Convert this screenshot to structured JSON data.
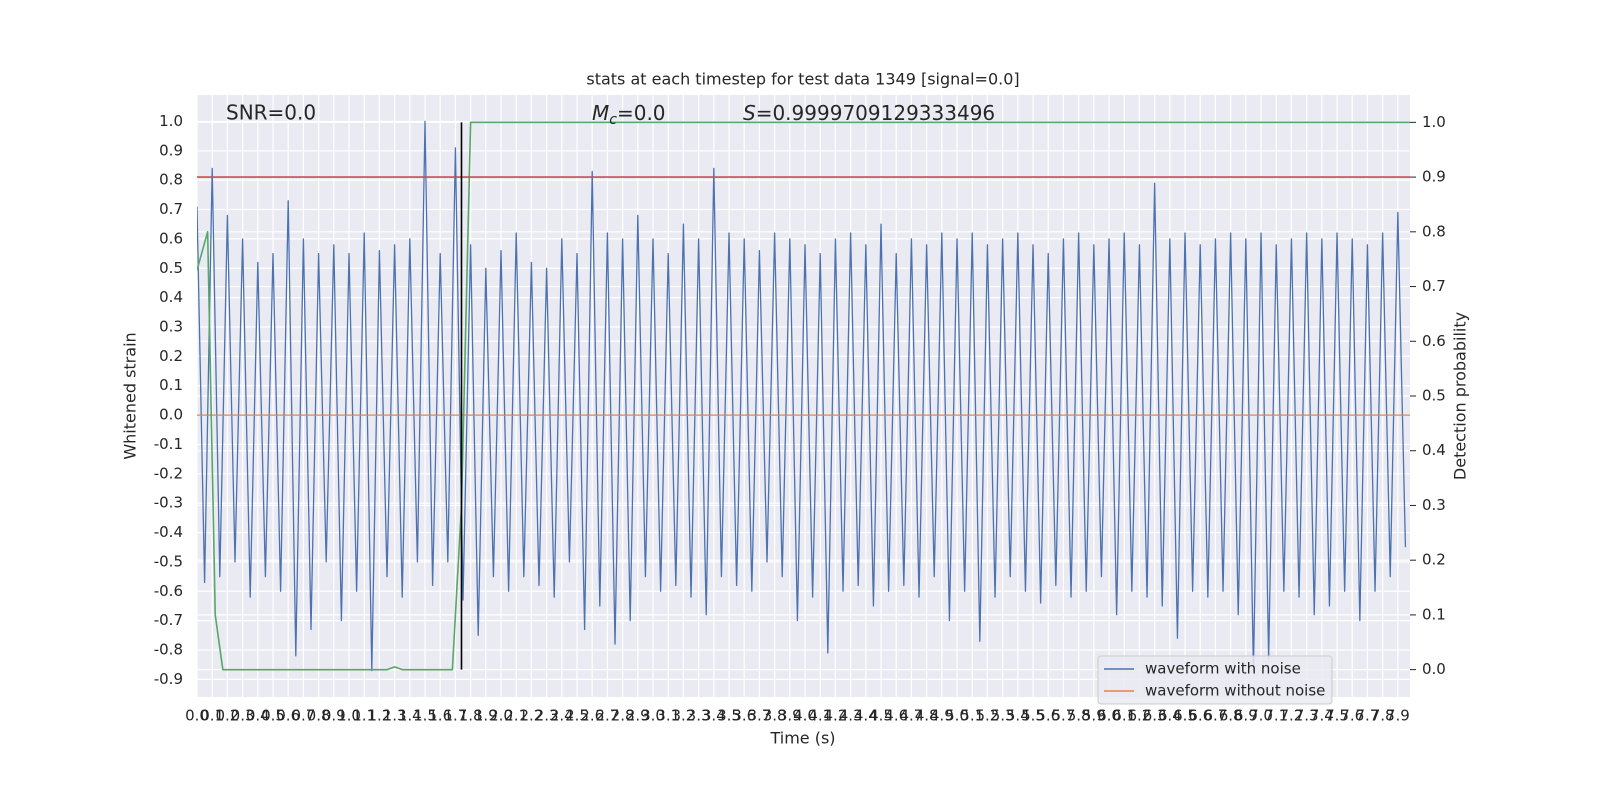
{
  "chart_data": {
    "type": "line",
    "title": "stats at each timestep for test data 1349 [signal=0.0]",
    "xlabel": "Time (s)",
    "ylabel": "Whitened strain",
    "y2label": "Detection probability",
    "annotations": {
      "snr": "SNR=0.0",
      "mc": {
        "symbol": "M",
        "subscript": "c",
        "text": "=0.0"
      },
      "s": {
        "symbol": "S",
        "text": "=0.9999709129333496"
      }
    },
    "xlim": [
      0,
      7.98
    ],
    "ylim": [
      -0.96,
      1.09
    ],
    "y2lim": [
      -0.05,
      1.05
    ],
    "grid": true,
    "legend": "lower right",
    "xticks": [
      {
        "value": 0,
        "label": "0.0"
      },
      0.1,
      0.2,
      0.3,
      0.4,
      0.5,
      0.6,
      0.7,
      0.8,
      0.9,
      {
        "value": 1,
        "label": "1.0"
      },
      1.1,
      1.2,
      1.3,
      1.4,
      1.5,
      1.6,
      1.7,
      1.8,
      1.9,
      {
        "value": 2,
        "label": "2.0"
      },
      2.1,
      2.2,
      2.3,
      2.4,
      2.5,
      2.6,
      2.7,
      2.8,
      2.9,
      {
        "value": 3,
        "label": "3.0"
      },
      3.1,
      3.2,
      3.3,
      3.4,
      3.5,
      3.6,
      3.7,
      3.8,
      3.9,
      {
        "value": 4,
        "label": "4.0"
      },
      4.1,
      4.2,
      4.3,
      4.4,
      4.5,
      4.6,
      4.7,
      4.8,
      4.9,
      {
        "value": 5,
        "label": "5.0"
      },
      5.1,
      5.2,
      5.3,
      5.4,
      5.5,
      5.6,
      5.7,
      5.8,
      5.9,
      {
        "value": 6,
        "label": "6.0"
      },
      6.1,
      6.2,
      6.3,
      6.4,
      6.5,
      6.6,
      6.7,
      6.8,
      6.9,
      {
        "value": 7,
        "label": "7.0"
      },
      7.1,
      7.2,
      7.3,
      7.4,
      7.5,
      7.6,
      7.7,
      7.8,
      7.9
    ],
    "yticks": [
      {
        "value": 1,
        "label": "1.0"
      },
      0.9,
      0.8,
      0.7,
      0.6,
      0.5,
      0.4,
      0.3,
      0.2,
      0.1,
      {
        "value": 0,
        "label": "0.0"
      },
      -0.1,
      -0.2,
      -0.3,
      -0.4,
      -0.5,
      -0.6,
      -0.7,
      -0.8,
      -0.9
    ],
    "y2ticks": [
      {
        "value": 1,
        "label": "1.0"
      },
      0.9,
      0.8,
      0.7,
      0.6,
      0.5,
      0.4,
      0.3,
      0.2,
      0.1,
      {
        "value": 0,
        "label": "0.0"
      }
    ],
    "series": [
      {
        "name": "waveform with noise",
        "color": "#4c72b0",
        "x": [
          0,
          0.05,
          0.1,
          0.15,
          0.2,
          0.25,
          0.3,
          0.35,
          0.4,
          0.45,
          0.5,
          0.55,
          0.6,
          0.65,
          0.7,
          0.75,
          0.8,
          0.85,
          0.9,
          0.95,
          1,
          1.05,
          1.1,
          1.15,
          1.2,
          1.25,
          1.3,
          1.35,
          1.4,
          1.45,
          1.5,
          1.55,
          1.6,
          1.65,
          1.7,
          1.75,
          1.8,
          1.85,
          1.9,
          1.95,
          2,
          2.05,
          2.1,
          2.15,
          2.2,
          2.25,
          2.3,
          2.35,
          2.4,
          2.45,
          2.5,
          2.55,
          2.6,
          2.65,
          2.7,
          2.75,
          2.8,
          2.85,
          2.9,
          2.95,
          3,
          3.05,
          3.1,
          3.15,
          3.2,
          3.25,
          3.3,
          3.35,
          3.4,
          3.45,
          3.5,
          3.55,
          3.6,
          3.65,
          3.7,
          3.75,
          3.8,
          3.85,
          3.9,
          3.95,
          4,
          4.05,
          4.1,
          4.15,
          4.2,
          4.25,
          4.3,
          4.35,
          4.4,
          4.45,
          4.5,
          4.55,
          4.6,
          4.65,
          4.7,
          4.75,
          4.8,
          4.85,
          4.9,
          4.95,
          5,
          5.05,
          5.1,
          5.15,
          5.2,
          5.25,
          5.3,
          5.35,
          5.4,
          5.45,
          5.5,
          5.55,
          5.6,
          5.65,
          5.7,
          5.75,
          5.8,
          5.85,
          5.9,
          5.95,
          6,
          6.05,
          6.1,
          6.15,
          6.2,
          6.25,
          6.3,
          6.35,
          6.4,
          6.45,
          6.5,
          6.55,
          6.6,
          6.65,
          6.7,
          6.75,
          6.8,
          6.85,
          6.9,
          6.95,
          7,
          7.05,
          7.1,
          7.15,
          7.2,
          7.25,
          7.3,
          7.35,
          7.4,
          7.45,
          7.5,
          7.55,
          7.6,
          7.65,
          7.7,
          7.75,
          7.8,
          7.85,
          7.9,
          7.95
        ],
        "values": [
          0.71,
          -0.57,
          0.84,
          -0.55,
          0.68,
          -0.5,
          0.6,
          -0.62,
          0.52,
          -0.55,
          0.55,
          -0.6,
          0.73,
          -0.82,
          0.6,
          -0.73,
          0.55,
          -0.5,
          0.58,
          -0.7,
          0.55,
          -0.6,
          0.62,
          -0.87,
          0.56,
          -0.55,
          0.58,
          -0.62,
          0.6,
          -0.5,
          1.0,
          -0.58,
          0.55,
          -0.5,
          0.91,
          -0.63,
          0.58,
          -0.75,
          0.5,
          -0.55,
          0.56,
          -0.6,
          0.62,
          -0.55,
          0.52,
          -0.58,
          0.5,
          -0.62,
          0.6,
          -0.5,
          0.55,
          -0.73,
          0.83,
          -0.65,
          0.62,
          -0.78,
          0.6,
          -0.7,
          0.68,
          -0.55,
          0.6,
          -0.6,
          0.55,
          -0.58,
          0.65,
          -0.62,
          0.6,
          -0.68,
          0.84,
          -0.55,
          0.62,
          -0.58,
          0.6,
          -0.6,
          0.56,
          -0.5,
          0.62,
          -0.55,
          0.6,
          -0.7,
          0.58,
          -0.62,
          0.55,
          -0.81,
          0.6,
          -0.6,
          0.62,
          -0.58,
          0.58,
          -0.65,
          0.65,
          -0.6,
          0.55,
          -0.58,
          0.6,
          -0.62,
          0.58,
          -0.55,
          0.62,
          -0.7,
          0.6,
          -0.6,
          0.62,
          -0.77,
          0.58,
          -0.62,
          0.6,
          -0.55,
          0.62,
          -0.6,
          0.58,
          -0.64,
          0.55,
          -0.58,
          0.6,
          -0.62,
          0.62,
          -0.6,
          0.58,
          -0.55,
          0.6,
          -0.68,
          0.62,
          -0.6,
          0.58,
          -0.62,
          0.79,
          -0.65,
          0.6,
          -0.76,
          0.62,
          -0.6,
          0.58,
          -0.62,
          0.6,
          -0.6,
          0.62,
          -0.68,
          0.6,
          -0.87,
          0.62,
          -0.83,
          0.58,
          -0.6,
          0.6,
          -0.62,
          0.62,
          -0.68,
          0.6,
          -0.65,
          0.62,
          -0.6,
          0.6,
          -0.7,
          0.58,
          -0.6,
          0.62,
          -0.55,
          0.69,
          -0.45
        ]
      },
      {
        "name": "waveform without noise",
        "color": "#dd8452",
        "x": [
          0,
          7.98
        ],
        "values": [
          0,
          0
        ]
      },
      {
        "color": "#55a868",
        "axis": "y2",
        "x": [
          0,
          0.07,
          0.12,
          0.17,
          1.25,
          1.3,
          1.35,
          1.68,
          1.74,
          1.8,
          7.98
        ],
        "values": [
          0.73,
          0.8,
          0.1,
          0,
          0,
          0.005,
          0,
          0,
          0.3,
          1.0,
          1.0
        ]
      },
      {
        "color": "#c44e52",
        "axis": "y2",
        "x": [
          0,
          7.98
        ],
        "values": [
          0.9,
          0.9
        ]
      },
      {
        "color": "#000000",
        "axis": "y2",
        "x": [
          1.74,
          1.74
        ],
        "values": [
          0,
          1
        ]
      }
    ]
  }
}
